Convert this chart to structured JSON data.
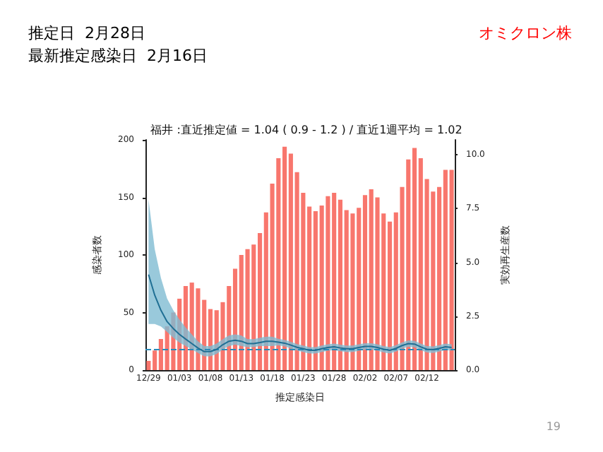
{
  "chart_data": {
    "type": "bar",
    "title": "福井 :直近推定値 = 1.04 ( 0.9 - 1.2 ) / 直近1週平均 = 1.02",
    "annotations": [
      "推定日  2月28日",
      "最新推定感染日  2月16日",
      "オミクロン株",
      "19"
    ],
    "xlabel": "推定感染日",
    "ylabel": "感染者数",
    "y2label": "実効再生産数",
    "categories": [
      "12/29",
      null,
      null,
      null,
      null,
      "01/03",
      null,
      null,
      null,
      null,
      "01/08",
      null,
      null,
      null,
      null,
      "01/13",
      null,
      null,
      null,
      null,
      "01/18",
      null,
      null,
      null,
      null,
      "01/23",
      null,
      null,
      null,
      null,
      "01/28",
      null,
      null,
      null,
      null,
      "02/02",
      null,
      null,
      null,
      null,
      "02/07",
      null,
      null,
      null,
      null,
      "02/12",
      null,
      null,
      null,
      null
    ],
    "series": [
      {
        "color": "#f8766d",
        "values": [
          8,
          17,
          27,
          38,
          50,
          62,
          73,
          76,
          71,
          61,
          53,
          52,
          59,
          73,
          88,
          100,
          105,
          109,
          119,
          137,
          162,
          184,
          194,
          188,
          172,
          154,
          142,
          138,
          143,
          151,
          154,
          148,
          139,
          136,
          141,
          152,
          157,
          150,
          136,
          129,
          137,
          159,
          183,
          193,
          184,
          166,
          155,
          159,
          174,
          174
        ]
      },
      {
        "type": "line",
        "axis": "y2",
        "color": "#1f6f94",
        "values": [
          4.44,
          3.48,
          2.78,
          2.25,
          1.93,
          1.66,
          1.44,
          1.23,
          1.02,
          0.86,
          0.86,
          0.96,
          1.18,
          1.34,
          1.39,
          1.34,
          1.23,
          1.23,
          1.28,
          1.34,
          1.34,
          1.3,
          1.25,
          1.16,
          1.06,
          0.99,
          0.92,
          0.92,
          0.99,
          1.05,
          1.08,
          1.03,
          0.99,
          0.99,
          1.05,
          1.1,
          1.1,
          1.05,
          0.97,
          0.92,
          1.01,
          1.14,
          1.23,
          1.21,
          1.08,
          0.97,
          0.95,
          1.01,
          1.08,
          1.05
        ],
        "lower": [
          2.14,
          2.14,
          2.03,
          1.77,
          1.5,
          1.28,
          1.12,
          0.96,
          0.8,
          0.64,
          0.64,
          0.75,
          0.96,
          1.12,
          1.18,
          1.12,
          1.07,
          1.07,
          1.12,
          1.12,
          1.12,
          1.15,
          1.1,
          1.01,
          0.91,
          0.84,
          0.77,
          0.77,
          0.84,
          0.9,
          0.93,
          0.88,
          0.84,
          0.84,
          0.9,
          0.95,
          0.95,
          0.9,
          0.82,
          0.77,
          0.86,
          0.99,
          1.08,
          1.06,
          0.93,
          0.82,
          0.8,
          0.86,
          0.93,
          0.9
        ],
        "upper": [
          7.92,
          5.62,
          4.28,
          3.32,
          2.78,
          2.35,
          1.98,
          1.66,
          1.34,
          1.12,
          1.12,
          1.23,
          1.44,
          1.61,
          1.66,
          1.61,
          1.44,
          1.44,
          1.5,
          1.55,
          1.55,
          1.45,
          1.4,
          1.31,
          1.21,
          1.14,
          1.07,
          1.07,
          1.14,
          1.2,
          1.23,
          1.18,
          1.14,
          1.14,
          1.2,
          1.25,
          1.25,
          1.2,
          1.12,
          1.07,
          1.16,
          1.29,
          1.38,
          1.36,
          1.23,
          1.12,
          1.1,
          1.16,
          1.23,
          1.2
        ]
      }
    ],
    "ylim": [
      0,
      200
    ],
    "yticks": [
      0,
      50,
      100,
      150,
      200
    ],
    "y2lim": [
      0,
      10.7
    ],
    "y2ticks": [
      {
        "value": 0,
        "label": "0.0"
      },
      {
        "value": 2.5,
        "label": "2.5"
      },
      {
        "value": 5,
        "label": "5.0"
      },
      {
        "value": 7.5,
        "label": "7.5"
      },
      {
        "value": 10,
        "label": "10.0"
      }
    ],
    "ref_lines": [
      {
        "axis": "y2",
        "value": 1,
        "color": "#2a8ab8",
        "line_style": "dashed"
      }
    ],
    "grid": false
  }
}
